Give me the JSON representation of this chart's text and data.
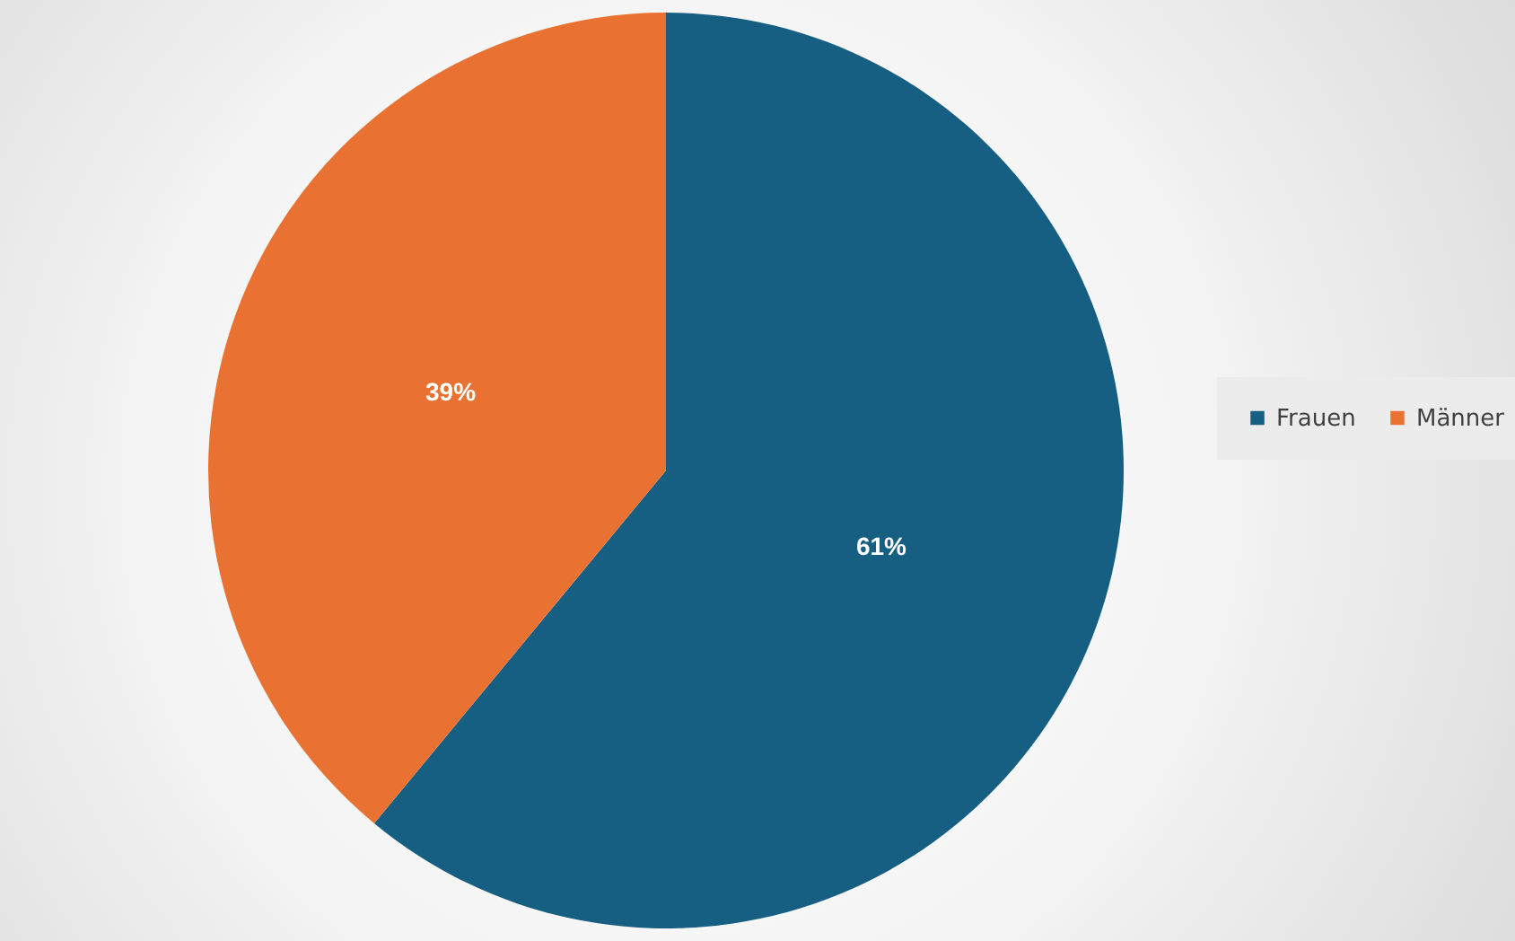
{
  "chart_data": {
    "type": "pie",
    "categories": [
      "Frauen",
      "Männer"
    ],
    "values": [
      61,
      39
    ],
    "value_labels": [
      "61%",
      "39%"
    ],
    "colors": [
      "#175f82",
      "#e97232"
    ],
    "legend": "right"
  }
}
